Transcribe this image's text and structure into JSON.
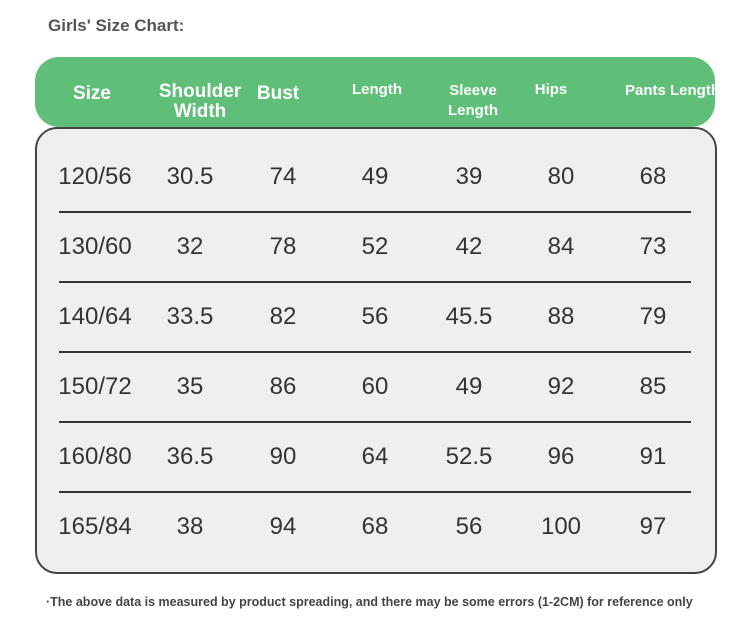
{
  "header": {
    "title": "Girls' Size Chart:"
  },
  "table": {
    "columns": [
      "Size",
      "Shoulder Width",
      "Bust",
      "Length",
      "Sleeve Length",
      "Hips",
      "Pants Length"
    ],
    "rows": [
      [
        "120/56",
        30.5,
        74,
        49,
        39,
        80,
        68
      ],
      [
        "130/60",
        32,
        78,
        52,
        42,
        84,
        73
      ],
      [
        "140/64",
        33.5,
        82,
        56,
        45.5,
        88,
        79
      ],
      [
        "150/72",
        35,
        86,
        60,
        49,
        92,
        85
      ],
      [
        "160/80",
        36.5,
        90,
        64,
        52.5,
        96,
        91
      ],
      [
        "165/84",
        38,
        94,
        68,
        56,
        100,
        97
      ]
    ]
  },
  "footer": {
    "note": "·The above data is measured by product spreading, and there may be some errors (1-2CM) for reference only"
  }
}
